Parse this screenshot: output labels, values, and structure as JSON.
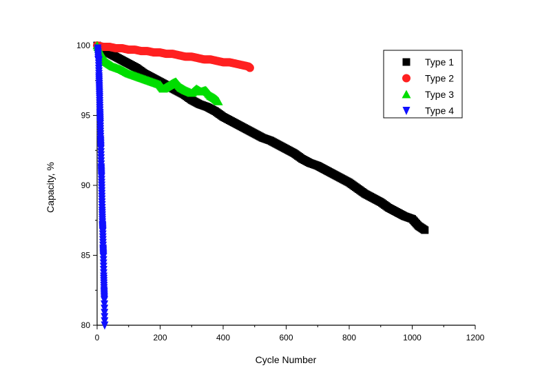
{
  "chart_data": {
    "type": "scatter",
    "xlabel": "Cycle Number",
    "ylabel": "Capacity, %",
    "xlim": [
      0,
      1200
    ],
    "ylim": [
      80,
      100
    ],
    "x_ticks": [
      0,
      200,
      400,
      600,
      800,
      1000,
      1200
    ],
    "y_ticks": [
      80,
      85,
      90,
      95,
      100
    ],
    "grid": false,
    "legend_position": "top-right",
    "series": [
      {
        "name": "Type 1",
        "marker": "square",
        "color": "#000000",
        "x": [
          0,
          25,
          50,
          75,
          100,
          125,
          150,
          175,
          200,
          225,
          250,
          275,
          300,
          325,
          350,
          375,
          400,
          425,
          450,
          475,
          500,
          525,
          550,
          575,
          600,
          625,
          650,
          675,
          700,
          725,
          750,
          775,
          800,
          825,
          850,
          875,
          900,
          925,
          950,
          975,
          1000,
          1020,
          1040
        ],
        "y": [
          100,
          99.6,
          99.3,
          99.0,
          98.7,
          98.4,
          98.0,
          97.7,
          97.4,
          97.1,
          96.8,
          96.5,
          96.1,
          95.8,
          95.6,
          95.3,
          94.9,
          94.6,
          94.3,
          94.0,
          93.7,
          93.4,
          93.2,
          92.9,
          92.6,
          92.3,
          91.9,
          91.6,
          91.4,
          91.1,
          90.8,
          90.5,
          90.2,
          89.8,
          89.4,
          89.1,
          88.8,
          88.4,
          88.1,
          87.8,
          87.6,
          87.1,
          86.8
        ]
      },
      {
        "name": "Type 2",
        "marker": "circle",
        "color": "#ff2020",
        "x": [
          0,
          20,
          40,
          60,
          80,
          100,
          120,
          140,
          160,
          180,
          200,
          220,
          240,
          260,
          280,
          300,
          320,
          340,
          360,
          380,
          400,
          420,
          440,
          460,
          480,
          485
        ],
        "y": [
          100,
          99.9,
          99.9,
          99.8,
          99.8,
          99.7,
          99.7,
          99.6,
          99.6,
          99.5,
          99.5,
          99.4,
          99.4,
          99.3,
          99.2,
          99.2,
          99.1,
          99.0,
          99.0,
          98.9,
          98.8,
          98.8,
          98.7,
          98.6,
          98.5,
          98.4
        ]
      },
      {
        "name": "Type 3",
        "marker": "triangle-up",
        "color": "#00dd00",
        "x": [
          0,
          15,
          30,
          50,
          75,
          100,
          125,
          150,
          175,
          200,
          210,
          225,
          240,
          250,
          265,
          280,
          300,
          315,
          330,
          345,
          360,
          375,
          385
        ],
        "y": [
          100,
          99.3,
          98.8,
          98.5,
          98.3,
          98.0,
          97.8,
          97.6,
          97.4,
          97.2,
          96.9,
          97.1,
          97.3,
          97.4,
          97.0,
          96.8,
          96.6,
          96.9,
          96.7,
          96.8,
          96.4,
          96.2,
          96.0
        ]
      },
      {
        "name": "Type 4",
        "marker": "triangle-down",
        "color": "#1010ff",
        "x": [
          2,
          4,
          5,
          6,
          7,
          8,
          9,
          10,
          11,
          12,
          13,
          14,
          15,
          16,
          17,
          18,
          19,
          20,
          21,
          22,
          23,
          24
        ],
        "y": [
          99.8,
          99.0,
          98.9,
          97.8,
          97.0,
          96.2,
          95.2,
          94.4,
          93.3,
          92.6,
          91.3,
          90.6,
          89.4,
          88.2,
          87.2,
          86.7,
          85.5,
          84.9,
          83.5,
          82.5,
          81.8,
          80.0
        ]
      }
    ]
  }
}
